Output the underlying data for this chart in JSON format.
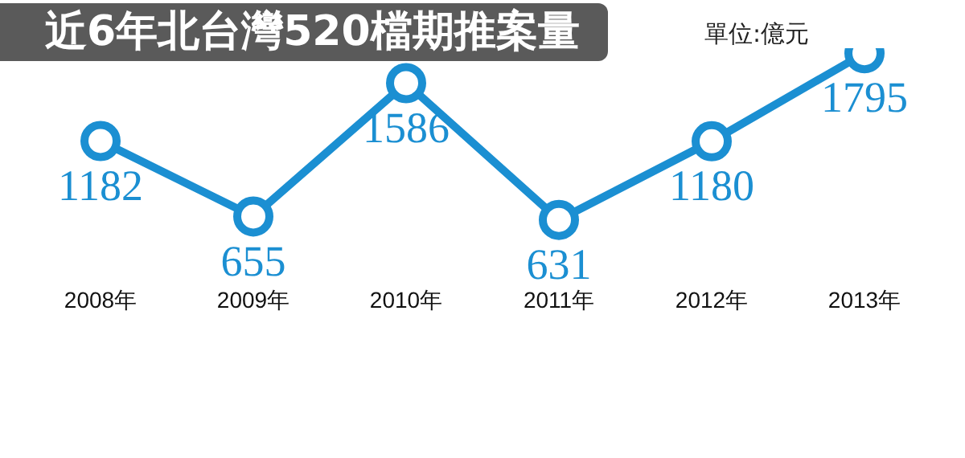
{
  "chart_data": {
    "type": "line",
    "title": "近6年北台灣520檔期推案量",
    "subtitle": "單位:億元",
    "categories": [
      "2008年",
      "2009年",
      "2010年",
      "2011年",
      "2012年",
      "2013年"
    ],
    "series": [
      {
        "color": "#1b8fd2",
        "values": [
          1182,
          655,
          1586,
          631,
          1180,
          1795
        ]
      }
    ],
    "data_labels": true,
    "marker": "circle",
    "line_style": "solid",
    "grid": false,
    "legend": false,
    "tick_labels": "x"
  }
}
